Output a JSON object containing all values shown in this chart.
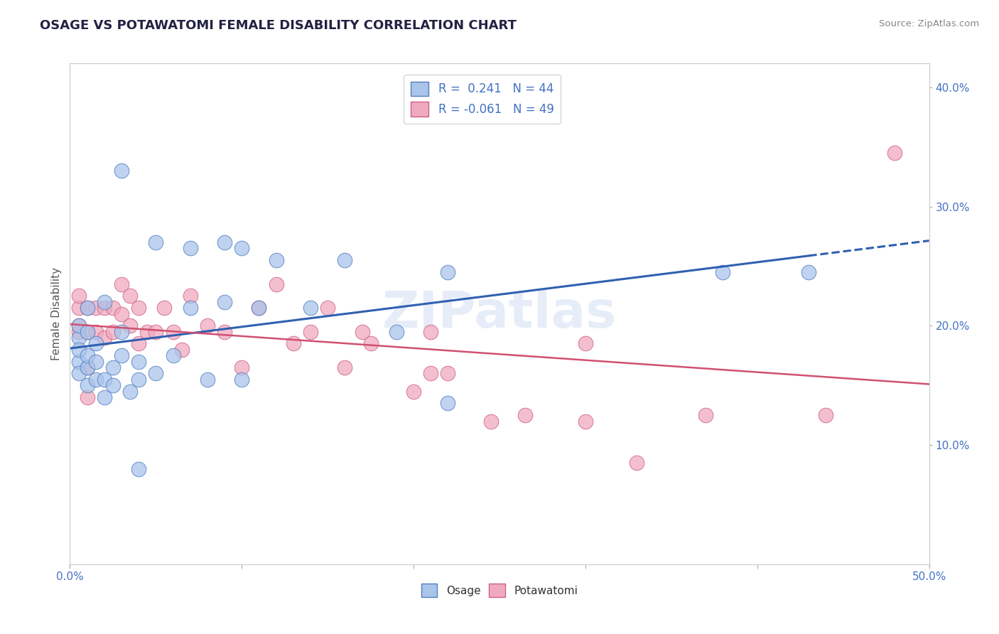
{
  "title": "OSAGE VS POTAWATOMI FEMALE DISABILITY CORRELATION CHART",
  "source": "Source: ZipAtlas.com",
  "ylabel": "Female Disability",
  "xlim": [
    0.0,
    0.5
  ],
  "ylim": [
    0.0,
    0.42
  ],
  "xtick_vals": [
    0.0,
    0.1,
    0.2,
    0.3,
    0.4,
    0.5
  ],
  "xtick_labels_show": [
    "0.0%",
    "",
    "",
    "",
    "",
    "50.0%"
  ],
  "ytick_vals": [
    0.1,
    0.2,
    0.3,
    0.4
  ],
  "ytick_labels": [
    "10.0%",
    "20.0%",
    "30.0%",
    "40.0%"
  ],
  "osage_color": "#aac4ea",
  "potawatomi_color": "#f0aac0",
  "osage_edge_color": "#5080c0",
  "potawatomi_edge_color": "#d06080",
  "osage_line_color": "#3060b0",
  "potawatomi_line_color": "#d05070",
  "title_color": "#222244",
  "label_color": "#4472c4",
  "axis_color": "#aaaaaa",
  "background_color": "#ffffff",
  "watermark": "ZIPatlas",
  "osage_r": 0.241,
  "osage_n": 44,
  "potawatomi_r": -0.061,
  "potawatomi_n": 49,
  "osage_x": [
    0.005,
    0.005,
    0.005,
    0.005,
    0.005,
    0.01,
    0.01,
    0.01,
    0.01,
    0.01,
    0.015,
    0.015,
    0.015,
    0.02,
    0.02,
    0.02,
    0.025,
    0.025,
    0.03,
    0.03,
    0.03,
    0.035,
    0.04,
    0.04,
    0.04,
    0.05,
    0.05,
    0.06,
    0.07,
    0.07,
    0.08,
    0.09,
    0.09,
    0.1,
    0.1,
    0.11,
    0.12,
    0.14,
    0.16,
    0.19,
    0.22,
    0.22,
    0.38,
    0.43
  ],
  "osage_y": [
    0.19,
    0.2,
    0.17,
    0.16,
    0.18,
    0.15,
    0.165,
    0.175,
    0.195,
    0.215,
    0.155,
    0.17,
    0.185,
    0.14,
    0.155,
    0.22,
    0.15,
    0.165,
    0.175,
    0.195,
    0.33,
    0.145,
    0.155,
    0.17,
    0.08,
    0.16,
    0.27,
    0.175,
    0.215,
    0.265,
    0.155,
    0.27,
    0.22,
    0.155,
    0.265,
    0.215,
    0.255,
    0.215,
    0.255,
    0.195,
    0.135,
    0.245,
    0.245,
    0.245
  ],
  "potawatomi_x": [
    0.005,
    0.005,
    0.005,
    0.005,
    0.01,
    0.01,
    0.01,
    0.01,
    0.015,
    0.015,
    0.02,
    0.02,
    0.025,
    0.025,
    0.03,
    0.03,
    0.035,
    0.035,
    0.04,
    0.04,
    0.045,
    0.05,
    0.055,
    0.06,
    0.065,
    0.07,
    0.08,
    0.09,
    0.1,
    0.11,
    0.12,
    0.13,
    0.14,
    0.15,
    0.16,
    0.17,
    0.175,
    0.2,
    0.21,
    0.21,
    0.22,
    0.245,
    0.265,
    0.3,
    0.3,
    0.33,
    0.37,
    0.44,
    0.48
  ],
  "potawatomi_y": [
    0.195,
    0.2,
    0.215,
    0.225,
    0.14,
    0.165,
    0.195,
    0.215,
    0.195,
    0.215,
    0.19,
    0.215,
    0.195,
    0.215,
    0.21,
    0.235,
    0.2,
    0.225,
    0.185,
    0.215,
    0.195,
    0.195,
    0.215,
    0.195,
    0.18,
    0.225,
    0.2,
    0.195,
    0.165,
    0.215,
    0.235,
    0.185,
    0.195,
    0.215,
    0.165,
    0.195,
    0.185,
    0.145,
    0.16,
    0.195,
    0.16,
    0.12,
    0.125,
    0.12,
    0.185,
    0.085,
    0.125,
    0.125,
    0.345
  ]
}
